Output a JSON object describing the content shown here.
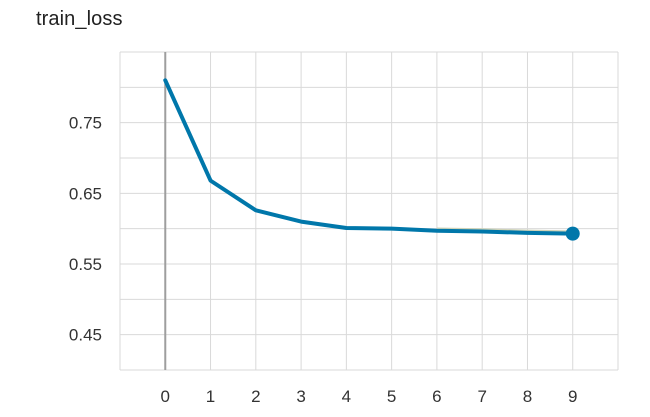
{
  "page_title": "train_loss",
  "chart_data": {
    "type": "line",
    "title": "train_loss",
    "xlabel": "",
    "ylabel": "",
    "x": [
      0,
      1,
      2,
      3,
      4,
      5,
      6,
      7,
      8,
      9
    ],
    "series": [
      {
        "values": [
          0.81,
          0.668,
          0.626,
          0.61,
          0.601,
          0.6,
          0.597,
          0.596,
          0.594,
          0.593
        ],
        "color": "#0077aa"
      }
    ],
    "smoothed_series_color": "#cfd3b8",
    "xlim": [
      -1,
      10
    ],
    "ylim": [
      0.4,
      0.85
    ],
    "x_ticks": [
      "0",
      "1",
      "2",
      "3",
      "4",
      "5",
      "6",
      "7",
      "8",
      "9"
    ],
    "y_ticks": [
      "0.45",
      "0.55",
      "0.65",
      "0.75"
    ],
    "y_tick_values": [
      0.45,
      0.55,
      0.65,
      0.75
    ],
    "grid": true,
    "legend": "none",
    "last_point_marker": true
  }
}
